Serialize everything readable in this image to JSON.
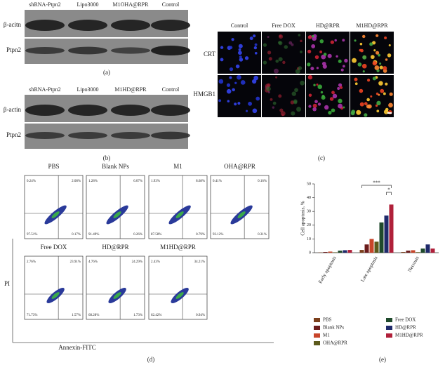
{
  "panel_a": {
    "lanes": [
      "shRNA-Ptpn2",
      "Lipo3000",
      "M1OHA@RPR",
      "Control"
    ],
    "rows": [
      "β-acitn",
      "Ptpn2"
    ],
    "caption": "(a)"
  },
  "panel_b": {
    "lanes": [
      "shRNA-Ptpn2",
      "Lipo3000",
      "M1HD@RPR",
      "Control"
    ],
    "rows": [
      "β-actin",
      "Ptpn2"
    ],
    "caption": "(b)"
  },
  "panel_c": {
    "columns": [
      "Control",
      "Free DOX",
      "HD@RPR",
      "M1HD@RPR"
    ],
    "rows": [
      "CRT",
      "HMGB1"
    ],
    "caption": "(c)"
  },
  "panel_d": {
    "plots": [
      {
        "title": "PBS",
        "quadrants": [
          "0.24%",
          "2.08%",
          "97.51%",
          "0.17%"
        ]
      },
      {
        "title": "Blank NPs",
        "quadrants": [
          "1.28%",
          "6.07%",
          "91.49%",
          "0.26%"
        ]
      },
      {
        "title": "M1",
        "quadrants": [
          "1.93%",
          "8.68%",
          "87.58%",
          "0.79%"
        ]
      },
      {
        "title": "OHA@RPR",
        "quadrants": [
          "0.41%",
          "0.16%",
          "93.12%",
          "0.31%"
        ]
      },
      {
        "title": "Free DOX",
        "quadrants": [
          "2.76%",
          "23.91%",
          "71.73%",
          "1.57%"
        ]
      },
      {
        "title": "HD@RPR",
        "quadrants": [
          "4.76%",
          "24.29%",
          "68.28%",
          "1.73%"
        ]
      },
      {
        "title": "M1HD@RPR",
        "quadrants": [
          "2.43%",
          "34.21%",
          "62.42%",
          "0.94%"
        ]
      }
    ],
    "y_label": "PI",
    "x_label": "Annexin-FITC",
    "caption": "(d)"
  },
  "chart_data": {
    "type": "bar",
    "y_label": "Cell apoptosis, %",
    "categories": [
      "Early apoptosis",
      "Late apoptosis",
      "Necrosis"
    ],
    "series": [
      {
        "name": "PBS",
        "color": "#7b3f1c",
        "values": [
          0.2,
          2,
          0.5
        ]
      },
      {
        "name": "Blank NPs",
        "color": "#6b1c1c",
        "values": [
          0.5,
          6,
          1.5
        ]
      },
      {
        "name": "M1",
        "color": "#c8452a",
        "values": [
          0.8,
          10,
          1.8
        ]
      },
      {
        "name": "OHA@RPR",
        "color": "#5c5a1c",
        "values": [
          0.3,
          8,
          0.4
        ]
      },
      {
        "name": "Free DOX",
        "color": "#1f4a2c",
        "values": [
          1.5,
          22,
          3
        ]
      },
      {
        "name": "HD@RPR",
        "color": "#1f2a6b",
        "values": [
          1.8,
          27,
          6
        ]
      },
      {
        "name": "M1HD@RPR",
        "color": "#b0203a",
        "values": [
          2,
          35,
          3
        ]
      }
    ],
    "ylim": [
      0,
      50
    ],
    "yticks": [
      0,
      10,
      20,
      30,
      40,
      50
    ],
    "annotations": [
      "***",
      "*"
    ],
    "caption": "(e)"
  }
}
